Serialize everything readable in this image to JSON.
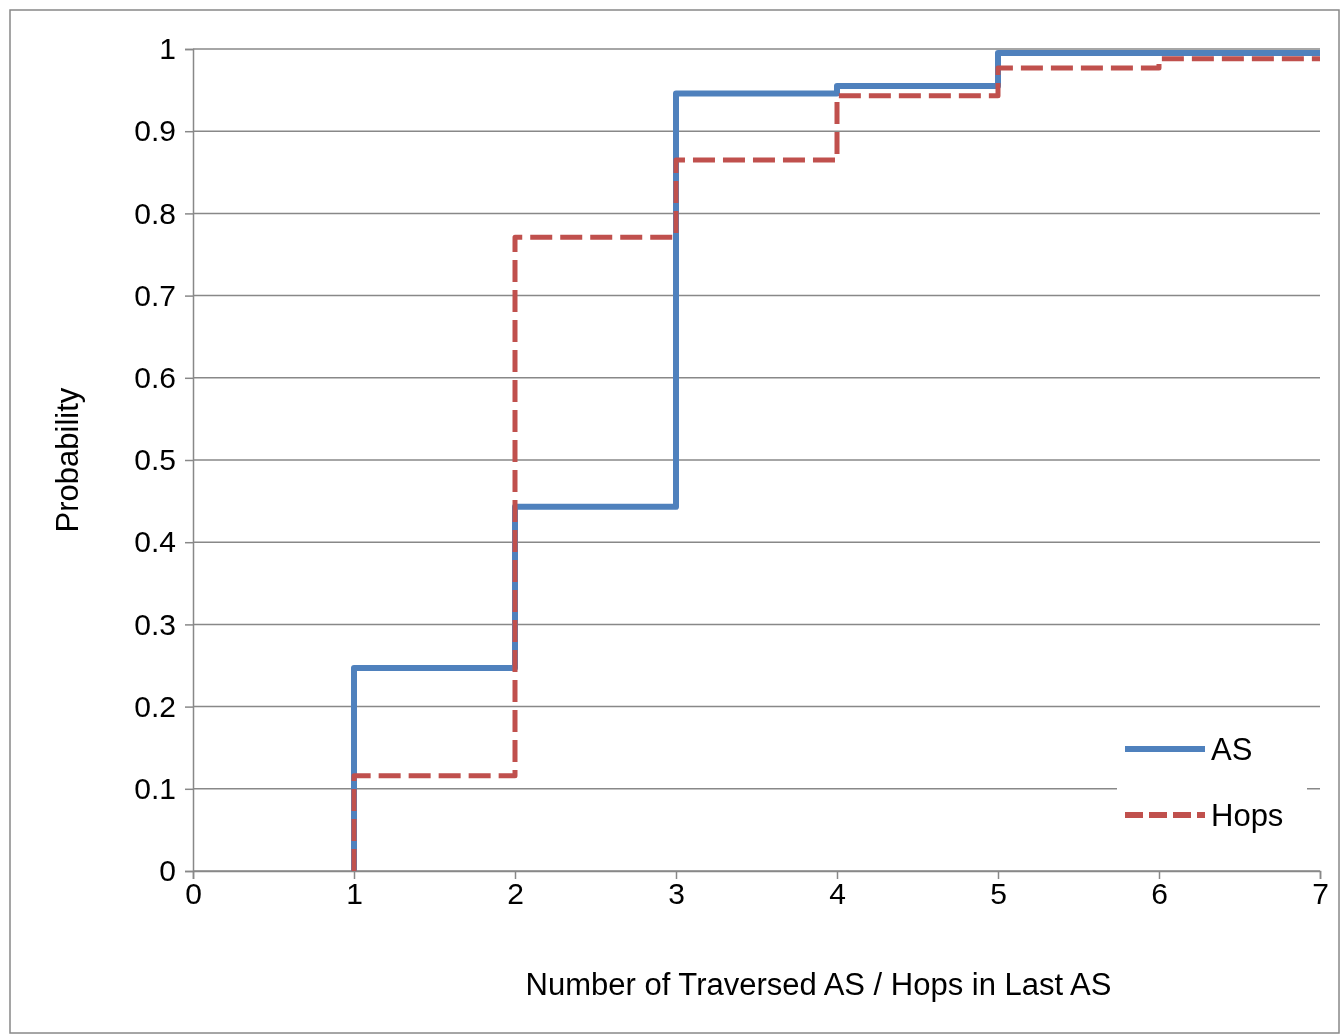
{
  "chart_data": {
    "type": "step",
    "xlabel": "Number of Traversed AS / Hops in Last AS",
    "ylabel": "Probability",
    "xlim": [
      0,
      7
    ],
    "xticks": [
      0,
      1,
      2,
      3,
      4,
      5,
      6,
      7
    ],
    "ylim": [
      0,
      1
    ],
    "yticks": [
      0,
      0.1,
      0.2,
      0.3,
      0.4,
      0.5,
      0.6,
      0.7,
      0.8,
      0.9,
      1
    ],
    "grid": "y",
    "legend": "bottom right",
    "series": [
      {
        "name": "AS",
        "color": "#4f81bd",
        "line_style": "solid",
        "x": [
          1,
          1,
          2,
          3,
          4,
          5,
          7
        ],
        "values": [
          0,
          0.247,
          0.443,
          0.946,
          0.955,
          0.995,
          0.995
        ]
      },
      {
        "name": "Hops",
        "color": "#c0504d",
        "line_style": "dashed",
        "x": [
          1,
          1,
          2,
          3,
          4,
          5,
          6,
          7
        ],
        "values": [
          0,
          0.116,
          0.771,
          0.865,
          0.943,
          0.977,
          0.988,
          0.988
        ]
      }
    ]
  }
}
